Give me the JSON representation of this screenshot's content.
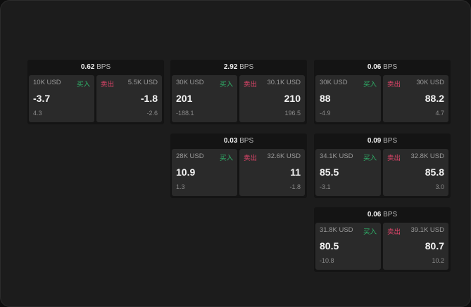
{
  "cards": [
    {
      "bps": "0.62",
      "unit": "BPS",
      "buy": {
        "size": "10K USD",
        "label": "买入",
        "price": "-3.7",
        "change": "4.3"
      },
      "sell": {
        "size": "5.5K USD",
        "label": "卖出",
        "price": "-1.8",
        "change": "-2.6"
      }
    },
    {
      "bps": "2.92",
      "unit": "BPS",
      "buy": {
        "size": "30K USD",
        "label": "买入",
        "price": "201",
        "change": "-188.1"
      },
      "sell": {
        "size": "30.1K USD",
        "label": "卖出",
        "price": "210",
        "change": "196.5"
      }
    },
    {
      "bps": "0.06",
      "unit": "BPS",
      "buy": {
        "size": "30K USD",
        "label": "买入",
        "price": "88",
        "change": "-4.9"
      },
      "sell": {
        "size": "30K USD",
        "label": "卖出",
        "price": "88.2",
        "change": "4.7"
      }
    },
    {
      "bps": "0.03",
      "unit": "BPS",
      "buy": {
        "size": "28K USD",
        "label": "买入",
        "price": "10.9",
        "change": "1.3"
      },
      "sell": {
        "size": "32.6K USD",
        "label": "卖出",
        "price": "11",
        "change": "-1.8"
      }
    },
    {
      "bps": "0.09",
      "unit": "BPS",
      "buy": {
        "size": "34.1K USD",
        "label": "买入",
        "price": "85.5",
        "change": "-3.1"
      },
      "sell": {
        "size": "32.8K USD",
        "label": "卖出",
        "price": "85.8",
        "change": "3.0"
      }
    },
    {
      "bps": "0.06",
      "unit": "BPS",
      "buy": {
        "size": "31.8K USD",
        "label": "买入",
        "price": "80.5",
        "change": "-10.8"
      },
      "sell": {
        "size": "39.1K USD",
        "label": "卖出",
        "price": "80.7",
        "change": "10.2"
      }
    }
  ],
  "colors": {
    "buy": "#2fb36a",
    "sell": "#e0456a"
  }
}
